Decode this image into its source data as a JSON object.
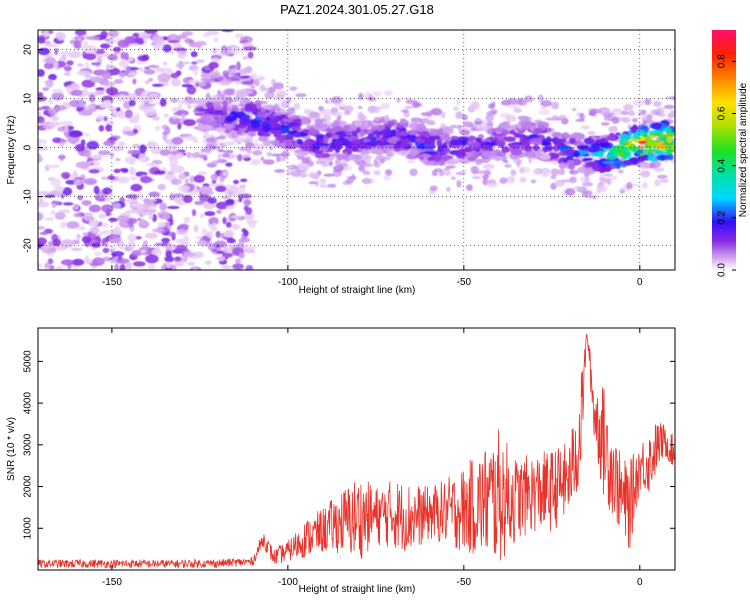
{
  "title": "PAZ1.2024.301.05.27.G18",
  "chart_data": [
    {
      "type": "heatmap",
      "xlabel": "Height of straight line (km)",
      "ylabel": "Frequency (Hz)",
      "xlim": [
        -171,
        10
      ],
      "ylim": [
        -25,
        24
      ],
      "xticks": [
        -150,
        -100,
        -50,
        0
      ],
      "yticks": [
        -20,
        -10,
        0,
        10,
        20
      ],
      "colorbar": {
        "label": "Normalized spectral amplitude",
        "range": [
          0,
          0.92
        ],
        "ticks": [
          0.0,
          0.2,
          0.4,
          0.6,
          0.8
        ]
      },
      "noise_region_x": [
        -171,
        -110
      ],
      "signal_ridge": {
        "x": [
          -125,
          -110,
          -100,
          -90,
          -80,
          -70,
          -60,
          -50,
          -40,
          -30,
          -20,
          -10,
          0,
          10
        ],
        "frequency": [
          7,
          6,
          3.5,
          1,
          1.5,
          3,
          0,
          0.5,
          1,
          2,
          -1,
          -1.5,
          1,
          1.5
        ],
        "peak_amplitude": [
          0.15,
          0.25,
          0.25,
          0.22,
          0.2,
          0.25,
          0.22,
          0.2,
          0.18,
          0.2,
          0.25,
          0.4,
          0.92,
          0.9
        ]
      }
    },
    {
      "type": "line",
      "xlabel": "Height of straight line (km)",
      "ylabel": "SNR (10 * v/v)",
      "xlim": [
        -171,
        10
      ],
      "ylim": [
        0,
        5800
      ],
      "xticks": [
        -150,
        -100,
        -50,
        0
      ],
      "yticks": [
        1000,
        2000,
        3000,
        4000,
        5000
      ],
      "series": [
        {
          "color": "#e8322a",
          "x": [
            -171,
            -160,
            -150,
            -140,
            -130,
            -120,
            -110,
            -107,
            -104,
            -100,
            -95,
            -90,
            -85,
            -80,
            -75,
            -70,
            -65,
            -60,
            -55,
            -50,
            -45,
            -40,
            -35,
            -30,
            -25,
            -20,
            -17,
            -15,
            -13,
            -10,
            -7,
            -5,
            -3,
            0,
            3,
            5,
            7,
            9,
            10
          ],
          "y": [
            150,
            150,
            150,
            150,
            150,
            160,
            200,
            750,
            300,
            450,
            750,
            950,
            1150,
            1250,
            1300,
            1350,
            1250,
            1350,
            1400,
            1450,
            1600,
            1750,
            1700,
            1850,
            1900,
            2200,
            3200,
            5700,
            3800,
            3000,
            2200,
            1700,
            1500,
            2500,
            2600,
            3000,
            3100,
            2900,
            2700
          ],
          "envelope_max": [
            250,
            250,
            250,
            250,
            250,
            260,
            300,
            950,
            500,
            700,
            1200,
            1500,
            1900,
            2300,
            2000,
            2200,
            2100,
            2000,
            2200,
            2500,
            2900,
            3400,
            2700,
            2800,
            2900,
            3100,
            4500,
            5800,
            4600,
            4400,
            3200,
            2700,
            2600,
            3100,
            3400,
            3600,
            3500,
            3300,
            3100
          ]
        }
      ]
    }
  ]
}
